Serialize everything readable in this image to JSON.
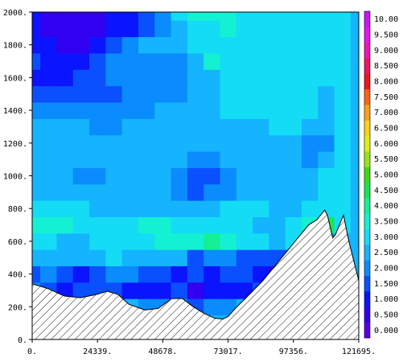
{
  "chart_data": {
    "type": "heatmap",
    "title": "",
    "xlabel": "",
    "ylabel": "",
    "xlim": [
      0,
      121695
    ],
    "ylim": [
      0,
      2000
    ],
    "x_ticks": [
      "0.",
      "24339.",
      "48678.",
      "73017.",
      "97356.",
      "121695."
    ],
    "y_ticks": [
      "0.",
      "200.",
      "400.",
      "600.",
      "800.",
      "1000.",
      "1200.",
      "1400.",
      "1600.",
      "1800.",
      "2000."
    ],
    "colorbar": {
      "labels": [
        "0.000",
        "0.500",
        "1.000",
        "1.500",
        "2.000",
        "2.500",
        "3.000",
        "3.500",
        "4.000",
        "4.500",
        "5.000",
        "5.500",
        "6.000",
        "6.500",
        "7.000",
        "7.500",
        "8.000",
        "8.500",
        "9.000",
        "9.500",
        "10.00"
      ],
      "colors": [
        "#5a00e6",
        "#3200f0",
        "#0a14ff",
        "#0a50ff",
        "#0a8cff",
        "#14b4ff",
        "#14dcf5",
        "#14f0d2",
        "#14f096",
        "#14e650",
        "#3cdc14",
        "#96e614",
        "#dcf014",
        "#ffd214",
        "#ffa014",
        "#ff6414",
        "#f0141e",
        "#f01464",
        "#f014b4",
        "#e614f0",
        "#c814ff"
      ]
    },
    "field": {
      "x": [
        0,
        6085,
        12170,
        18254,
        24339,
        30424,
        36509,
        42593,
        48678,
        54763,
        60848,
        66932,
        73017,
        79102,
        85187,
        91271,
        97356,
        103441,
        109526,
        115610,
        121695
      ],
      "z": [
        [
          2.5,
          2.5,
          2.5,
          2.5,
          2.5,
          2.5,
          2.5,
          2.5,
          2.5,
          2.5,
          2.5,
          2.5,
          2.5,
          2.5,
          2.5,
          2.5,
          2.5,
          2.5,
          2.5,
          2.5,
          2.5
        ],
        [
          2.5,
          2.5,
          2.5,
          2.5,
          2.5,
          2.5,
          2.5,
          2.5,
          2.5,
          2.5,
          2.5,
          2.5,
          2.5,
          2.5,
          2.5,
          2.5,
          2.5,
          2.5,
          2.5,
          2.5,
          2.5
        ],
        [
          2.5,
          2.0,
          2.0,
          2.0,
          2.5,
          2.5,
          2.5,
          2.0,
          2.0,
          2.0,
          1.5,
          2.0,
          2.0,
          2.5,
          2.5,
          2.5,
          2.5,
          2.5,
          2.5,
          2.5,
          2.5
        ],
        [
          2.0,
          1.5,
          1.0,
          1.5,
          1.5,
          1.5,
          1.0,
          1.0,
          1.0,
          1.5,
          0.5,
          1.0,
          1.0,
          1.0,
          1.5,
          1.5,
          2.5,
          2.5,
          2.5,
          2.5,
          2.5
        ],
        [
          1.5,
          2.0,
          1.5,
          1.0,
          1.5,
          2.0,
          2.0,
          1.5,
          1.5,
          1.0,
          1.5,
          1.0,
          1.5,
          1.5,
          1.0,
          0.5,
          1.5,
          2.5,
          2.5,
          2.5,
          2.5
        ],
        [
          2.5,
          2.5,
          2.5,
          2.5,
          2.5,
          3.0,
          2.5,
          2.5,
          2.5,
          2.5,
          1.5,
          2.0,
          2.0,
          1.5,
          1.5,
          1.5,
          1.5,
          1.5,
          2.0,
          2.5,
          2.5
        ],
        [
          3.0,
          3.0,
          2.5,
          2.5,
          3.0,
          3.0,
          3.0,
          3.0,
          3.5,
          3.5,
          3.5,
          4.0,
          3.5,
          3.0,
          3.0,
          2.5,
          3.0,
          2.5,
          2.0,
          2.5,
          2.5
        ],
        [
          3.5,
          3.5,
          3.5,
          3.0,
          3.0,
          3.0,
          3.0,
          3.5,
          3.5,
          3.0,
          3.0,
          3.0,
          3.0,
          3.0,
          2.5,
          2.5,
          3.0,
          3.5,
          4.5,
          3.0,
          2.5
        ],
        [
          3.0,
          3.0,
          3.0,
          3.0,
          2.5,
          2.5,
          2.5,
          2.5,
          2.5,
          2.5,
          2.5,
          2.5,
          3.0,
          3.0,
          3.0,
          2.5,
          2.5,
          3.0,
          3.0,
          3.0,
          2.5
        ],
        [
          2.5,
          2.5,
          2.5,
          2.5,
          2.5,
          2.5,
          2.5,
          2.5,
          2.5,
          2.0,
          1.5,
          2.0,
          2.0,
          2.5,
          2.5,
          2.5,
          2.5,
          2.5,
          3.0,
          3.0,
          2.5
        ],
        [
          2.5,
          2.5,
          2.5,
          2.0,
          2.0,
          2.5,
          2.5,
          2.5,
          2.5,
          2.0,
          1.5,
          1.5,
          2.0,
          2.5,
          2.5,
          2.5,
          2.5,
          2.5,
          3.0,
          3.0,
          2.5
        ],
        [
          2.5,
          2.5,
          2.5,
          2.5,
          2.5,
          2.5,
          2.5,
          2.5,
          2.5,
          2.5,
          2.0,
          2.0,
          2.5,
          2.5,
          2.5,
          2.5,
          2.5,
          2.0,
          2.5,
          3.0,
          2.5
        ],
        [
          2.5,
          2.5,
          2.5,
          2.5,
          2.5,
          2.5,
          2.5,
          2.5,
          2.5,
          2.5,
          2.5,
          2.5,
          2.5,
          2.5,
          2.5,
          2.5,
          2.5,
          2.0,
          2.0,
          3.0,
          2.5
        ],
        [
          2.5,
          2.5,
          2.5,
          2.5,
          2.0,
          2.0,
          2.5,
          2.5,
          2.5,
          2.5,
          2.5,
          2.5,
          2.5,
          2.5,
          2.5,
          3.0,
          3.0,
          2.5,
          2.5,
          3.0,
          2.5
        ],
        [
          2.0,
          2.0,
          2.0,
          2.0,
          2.0,
          2.0,
          2.0,
          2.0,
          2.5,
          2.5,
          2.5,
          2.5,
          3.0,
          3.0,
          3.0,
          3.0,
          3.0,
          3.0,
          2.5,
          3.0,
          2.5
        ],
        [
          1.5,
          1.5,
          1.5,
          1.5,
          1.5,
          1.5,
          2.0,
          2.0,
          2.0,
          2.0,
          2.5,
          2.5,
          3.0,
          3.0,
          3.0,
          3.0,
          3.0,
          3.0,
          2.5,
          3.0,
          2.5
        ],
        [
          1.0,
          1.0,
          1.0,
          1.5,
          1.5,
          2.0,
          2.0,
          2.0,
          2.0,
          2.0,
          2.5,
          2.5,
          3.0,
          3.0,
          3.0,
          3.0,
          3.0,
          3.0,
          3.0,
          3.0,
          2.5
        ],
        [
          1.5,
          1.0,
          1.0,
          1.0,
          1.5,
          2.0,
          2.0,
          2.0,
          2.0,
          2.0,
          2.5,
          3.5,
          3.0,
          3.0,
          3.0,
          3.0,
          3.0,
          3.0,
          3.0,
          3.0,
          2.5
        ],
        [
          1.0,
          1.0,
          0.5,
          0.5,
          1.0,
          1.5,
          2.0,
          2.5,
          2.5,
          2.5,
          3.0,
          3.0,
          3.0,
          3.0,
          3.0,
          3.0,
          3.0,
          3.0,
          3.0,
          3.0,
          2.5
        ],
        [
          1.0,
          0.5,
          0.5,
          0.5,
          0.5,
          1.0,
          1.0,
          1.5,
          2.0,
          2.5,
          3.0,
          3.0,
          3.5,
          3.0,
          3.0,
          3.0,
          3.0,
          3.0,
          3.0,
          3.0,
          2.5
        ],
        [
          1.0,
          0.5,
          0.5,
          0.5,
          0.5,
          1.0,
          1.0,
          1.5,
          2.0,
          3.0,
          3.5,
          3.5,
          3.5,
          3.0,
          3.0,
          3.0,
          3.0,
          3.0,
          3.0,
          3.0,
          2.5
        ]
      ]
    },
    "terrain": {
      "x": [
        0,
        6000,
        12000,
        18000,
        24000,
        28000,
        32000,
        36000,
        42000,
        47000,
        52000,
        56000,
        60000,
        64000,
        68000,
        71000,
        73000,
        76000,
        80000,
        86000,
        92000,
        98000,
        103000,
        106000,
        109000,
        110000,
        112000,
        113000,
        115000,
        116000,
        118000,
        121695
      ],
      "y": [
        340,
        310,
        265,
        255,
        275,
        295,
        275,
        215,
        180,
        190,
        250,
        250,
        200,
        160,
        130,
        125,
        140,
        195,
        260,
        360,
        480,
        600,
        700,
        730,
        790,
        760,
        620,
        640,
        720,
        760,
        600,
        360
      ]
    }
  }
}
